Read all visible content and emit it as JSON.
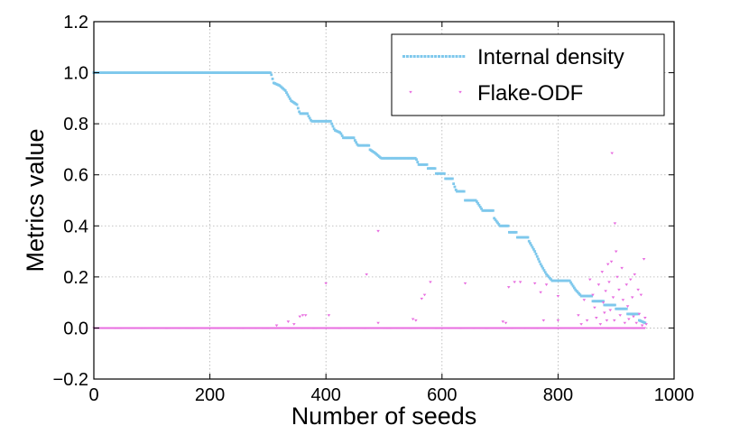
{
  "chart_data": {
    "type": "scatter",
    "title": "",
    "xlabel": "Number of seeds",
    "ylabel": "Metrics value",
    "xlim": [
      0,
      1000
    ],
    "ylim": [
      -0.2,
      1.2
    ],
    "xticks": [
      "0",
      "200",
      "400",
      "600",
      "800",
      "1000"
    ],
    "yticks": [
      "−0.2",
      "0.0",
      "0.2",
      "0.4",
      "0.6",
      "0.8",
      "1.0",
      "1.2"
    ],
    "grid": true,
    "legend_position": "top-right",
    "series": [
      {
        "name": "Internal density",
        "color": "#7ec8ec",
        "marker": "square",
        "step_points": [
          [
            0,
            1.0
          ],
          [
            305,
            1.0
          ],
          [
            310,
            0.96
          ],
          [
            320,
            0.95
          ],
          [
            330,
            0.93
          ],
          [
            340,
            0.89
          ],
          [
            350,
            0.875
          ],
          [
            355,
            0.84
          ],
          [
            370,
            0.83
          ],
          [
            375,
            0.81
          ],
          [
            410,
            0.8
          ],
          [
            415,
            0.775
          ],
          [
            425,
            0.765
          ],
          [
            430,
            0.745
          ],
          [
            450,
            0.735
          ],
          [
            455,
            0.715
          ],
          [
            475,
            0.7
          ],
          [
            485,
            0.685
          ],
          [
            495,
            0.665
          ],
          [
            555,
            0.665
          ],
          [
            560,
            0.64
          ],
          [
            575,
            0.625
          ],
          [
            590,
            0.605
          ],
          [
            605,
            0.585
          ],
          [
            620,
            0.565
          ],
          [
            625,
            0.535
          ],
          [
            640,
            0.5
          ],
          [
            660,
            0.495
          ],
          [
            670,
            0.46
          ],
          [
            690,
            0.43
          ],
          [
            700,
            0.4
          ],
          [
            715,
            0.375
          ],
          [
            730,
            0.355
          ],
          [
            750,
            0.34
          ],
          [
            760,
            0.3
          ],
          [
            770,
            0.25
          ],
          [
            780,
            0.21
          ],
          [
            790,
            0.185
          ],
          [
            820,
            0.185
          ],
          [
            830,
            0.15
          ],
          [
            840,
            0.125
          ],
          [
            860,
            0.105
          ],
          [
            880,
            0.09
          ],
          [
            900,
            0.075
          ],
          [
            920,
            0.055
          ],
          [
            940,
            0.03
          ],
          [
            950,
            0.02
          ]
        ]
      },
      {
        "name": "Flake-ODF",
        "color": "#e86de0",
        "marker": "triangle",
        "baseline": 0.0,
        "baseline_range": [
          0,
          950
        ],
        "outliers": [
          [
            315,
            0.01
          ],
          [
            335,
            0.025
          ],
          [
            345,
            0.015
          ],
          [
            355,
            0.045
          ],
          [
            360,
            0.05
          ],
          [
            365,
            0.05
          ],
          [
            400,
            0.175
          ],
          [
            405,
            0.05
          ],
          [
            470,
            0.21
          ],
          [
            490,
            0.38
          ],
          [
            490,
            0.02
          ],
          [
            550,
            0.035
          ],
          [
            555,
            0.03
          ],
          [
            565,
            0.115
          ],
          [
            570,
            0.13
          ],
          [
            580,
            0.18
          ],
          [
            640,
            0.175
          ],
          [
            705,
            0.025
          ],
          [
            710,
            0.02
          ],
          [
            715,
            0.16
          ],
          [
            725,
            0.18
          ],
          [
            735,
            0.18
          ],
          [
            760,
            0.175
          ],
          [
            770,
            0.14
          ],
          [
            780,
            0.17
          ],
          [
            775,
            0.03
          ],
          [
            800,
            0.125
          ],
          [
            800,
            0.03
          ],
          [
            835,
            0.05
          ],
          [
            840,
            0.015
          ],
          [
            845,
            0.11
          ],
          [
            850,
            0.03
          ],
          [
            855,
            0.19
          ],
          [
            860,
            0.13
          ],
          [
            863,
            0.08
          ],
          [
            866,
            0.04
          ],
          [
            870,
            0.17
          ],
          [
            873,
            0.015
          ],
          [
            876,
            0.22
          ],
          [
            878,
            0.1
          ],
          [
            880,
            0.06
          ],
          [
            882,
            0.145
          ],
          [
            884,
            0.03
          ],
          [
            886,
            0.25
          ],
          [
            888,
            0.18
          ],
          [
            890,
            0.07
          ],
          [
            892,
            0.26
          ],
          [
            893,
            0.685
          ],
          [
            895,
            0.12
          ],
          [
            897,
            0.03
          ],
          [
            898,
            0.41
          ],
          [
            900,
            0.3
          ],
          [
            902,
            0.2
          ],
          [
            905,
            0.15
          ],
          [
            907,
            0.05
          ],
          [
            910,
            0.235
          ],
          [
            912,
            0.11
          ],
          [
            915,
            0.02
          ],
          [
            918,
            0.17
          ],
          [
            920,
            0.085
          ],
          [
            922,
            0.035
          ],
          [
            925,
            0.19
          ],
          [
            928,
            0.12
          ],
          [
            930,
            0.045
          ],
          [
            932,
            0.21
          ],
          [
            935,
            0.02
          ],
          [
            938,
            0.15
          ],
          [
            940,
            0.055
          ],
          [
            943,
            0.13
          ],
          [
            945,
            0.01
          ],
          [
            948,
            0.27
          ],
          [
            950,
            0.04
          ],
          [
            952,
            0.015
          ]
        ]
      }
    ]
  }
}
